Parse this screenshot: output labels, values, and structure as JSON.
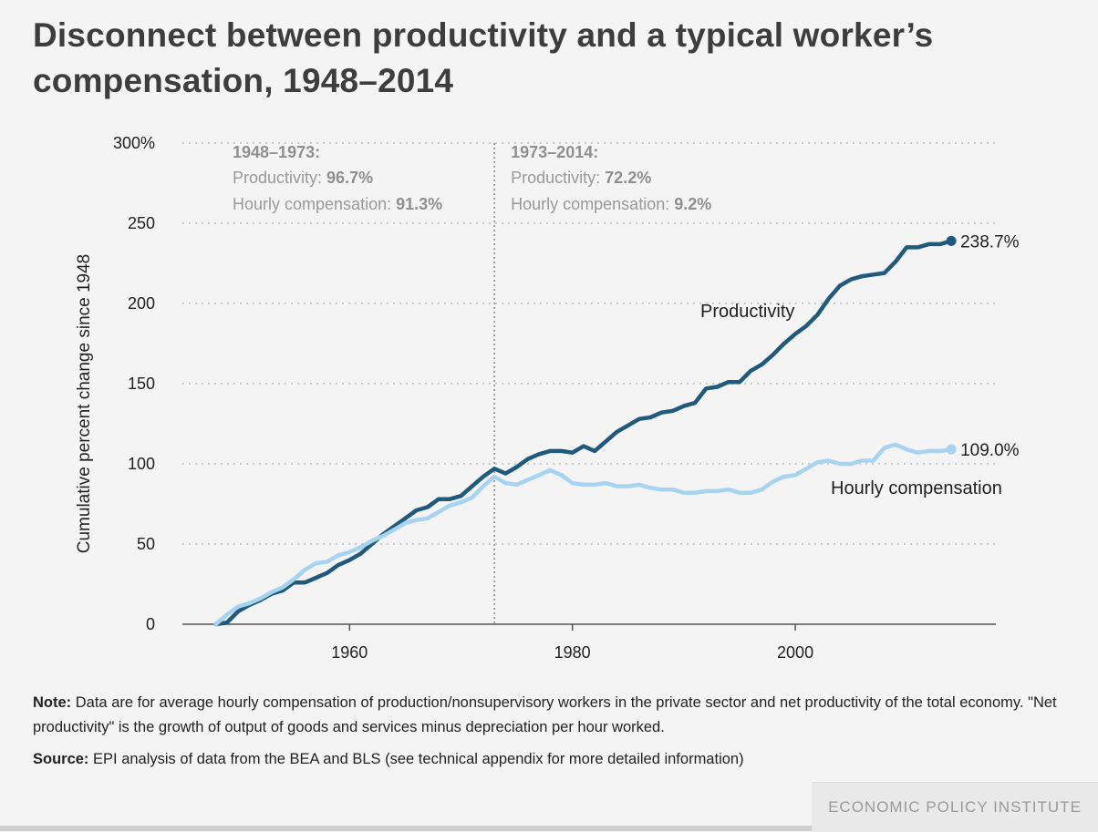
{
  "chart_data": {
    "type": "line",
    "title": "Disconnect between productivity and a typical worker’s compensation, 1948–2014",
    "ylabel": "Cumulative percent change since 1948",
    "xlabel": "",
    "xlim": [
      1945,
      2018
    ],
    "ylim": [
      0,
      300
    ],
    "x_ticks": [
      1960,
      1980,
      2000
    ],
    "y_ticks": [
      {
        "value": 0,
        "label": "0"
      },
      {
        "value": 50,
        "label": "50"
      },
      {
        "value": 100,
        "label": "100"
      },
      {
        "value": 150,
        "label": "150"
      },
      {
        "value": 200,
        "label": "200"
      },
      {
        "value": 250,
        "label": "250"
      },
      {
        "value": 300,
        "label": "300%"
      }
    ],
    "grid": "horizontal dotted",
    "divider_year": 1973,
    "annotations": [
      {
        "heading": "1948–1973:",
        "lines": [
          {
            "label": "Productivity: ",
            "value": "96.7%"
          },
          {
            "label": "Hourly compensation: ",
            "value": "91.3%"
          }
        ]
      },
      {
        "heading": "1973–2014:",
        "lines": [
          {
            "label": "Productivity: ",
            "value": "72.2%"
          },
          {
            "label": "Hourly compensation: ",
            "value": "9.2%"
          }
        ]
      }
    ],
    "x": [
      1948,
      1949,
      1950,
      1951,
      1952,
      1953,
      1954,
      1955,
      1956,
      1957,
      1958,
      1959,
      1960,
      1961,
      1962,
      1963,
      1964,
      1965,
      1966,
      1967,
      1968,
      1969,
      1970,
      1971,
      1972,
      1973,
      1974,
      1975,
      1976,
      1977,
      1978,
      1979,
      1980,
      1981,
      1982,
      1983,
      1984,
      1985,
      1986,
      1987,
      1988,
      1989,
      1990,
      1991,
      1992,
      1993,
      1994,
      1995,
      1996,
      1997,
      1998,
      1999,
      2000,
      2001,
      2002,
      2003,
      2004,
      2005,
      2006,
      2007,
      2008,
      2009,
      2010,
      2011,
      2012,
      2013,
      2014
    ],
    "series": [
      {
        "name": "Productivity",
        "color": "#1f5a7d",
        "end_label": "238.7%",
        "values": [
          0,
          1,
          8,
          12,
          15,
          19,
          21,
          26,
          26,
          29,
          32,
          37,
          40,
          44,
          50,
          56,
          61,
          66,
          71,
          73,
          78,
          78,
          80,
          86,
          92,
          97,
          94,
          98,
          103,
          106,
          108,
          108,
          107,
          111,
          108,
          114,
          120,
          124,
          128,
          129,
          132,
          133,
          136,
          138,
          147,
          148,
          151,
          151,
          158,
          162,
          168,
          175,
          181,
          186,
          193,
          203,
          211,
          215,
          217,
          218,
          219,
          226,
          235,
          235,
          237,
          237,
          239
        ]
      },
      {
        "name": "Hourly compensation",
        "color": "#a6d3ef",
        "end_label": "109.0%",
        "values": [
          0,
          6,
          11,
          13,
          16,
          20,
          23,
          28,
          34,
          38,
          39,
          43,
          45,
          48,
          52,
          55,
          59,
          63,
          65,
          66,
          70,
          74,
          76,
          79,
          86,
          92,
          88,
          87,
          90,
          93,
          96,
          93,
          88,
          87,
          87,
          88,
          86,
          86,
          87,
          85,
          84,
          84,
          82,
          82,
          83,
          83,
          84,
          82,
          82,
          84,
          89,
          92,
          93,
          97,
          101,
          102,
          100,
          100,
          102,
          102,
          110,
          112,
          109,
          107,
          108,
          108,
          109
        ]
      }
    ]
  },
  "footer": {
    "note_label": "Note:",
    "note_text": " Data are for average hourly compensation of production/nonsupervisory workers in the private sector and net productivity of the total economy. \"Net productivity\" is the growth of output of goods and services minus depreciation per hour worked.",
    "source_label": "Source:",
    "source_text": " EPI analysis of data from the BEA and BLS (see technical appendix for more detailed information)",
    "brand": "ECONOMIC POLICY INSTITUTE"
  }
}
